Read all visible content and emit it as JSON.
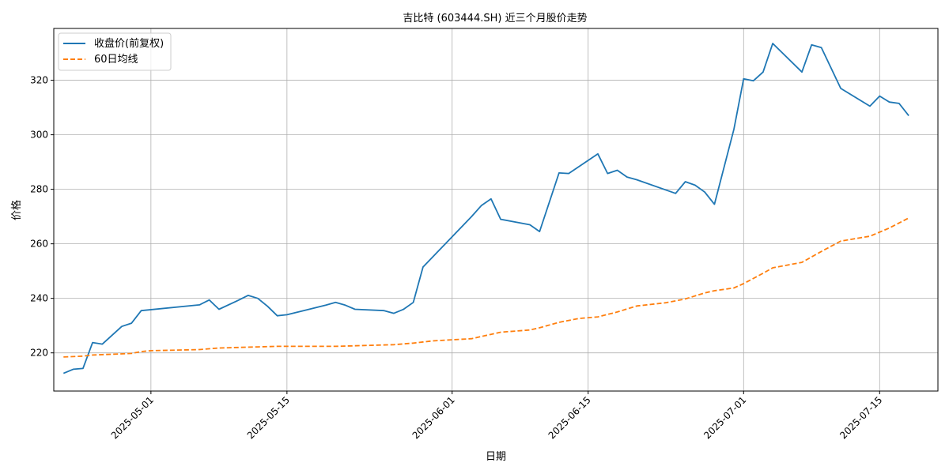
{
  "chart_data": {
    "type": "line",
    "title": "吉比特 (603444.SH) 近三个月股价走势",
    "xlabel": "日期",
    "ylabel": "价格",
    "grid": true,
    "legend_position": "top-left",
    "xlim": [
      "2025-04-21",
      "2025-07-21"
    ],
    "ylim": [
      206,
      339
    ],
    "x_ticks": [
      "2025-05-01",
      "2025-05-15",
      "2025-06-01",
      "2025-06-15",
      "2025-07-01",
      "2025-07-15"
    ],
    "y_ticks": [
      220,
      240,
      260,
      280,
      300,
      320
    ],
    "series": [
      {
        "name": "收盘价(前复权)",
        "color": "#1f77b4",
        "style": "solid",
        "points": [
          [
            "2025-04-22",
            212.5
          ],
          [
            "2025-04-23",
            214.0
          ],
          [
            "2025-04-24",
            214.3
          ],
          [
            "2025-04-25",
            223.8
          ],
          [
            "2025-04-26",
            223.2
          ],
          [
            "2025-04-28",
            229.7
          ],
          [
            "2025-04-29",
            230.9
          ],
          [
            "2025-04-30",
            235.5
          ],
          [
            "2025-05-06",
            237.6
          ],
          [
            "2025-05-07",
            239.4
          ],
          [
            "2025-05-08",
            236.0
          ],
          [
            "2025-05-10",
            239.3
          ],
          [
            "2025-05-11",
            241.1
          ],
          [
            "2025-05-12",
            240.0
          ],
          [
            "2025-05-13",
            237.1
          ],
          [
            "2025-05-14",
            233.6
          ],
          [
            "2025-05-15",
            234.0
          ],
          [
            "2025-05-19",
            237.5
          ],
          [
            "2025-05-20",
            238.5
          ],
          [
            "2025-05-21",
            237.5
          ],
          [
            "2025-05-22",
            236.0
          ],
          [
            "2025-05-25",
            235.5
          ],
          [
            "2025-05-26",
            234.5
          ],
          [
            "2025-05-27",
            236.0
          ],
          [
            "2025-05-28",
            238.5
          ],
          [
            "2025-05-29",
            251.5
          ],
          [
            "2025-06-03",
            270.0
          ],
          [
            "2025-06-04",
            274.0
          ],
          [
            "2025-06-05",
            276.5
          ],
          [
            "2025-06-06",
            269.0
          ],
          [
            "2025-06-09",
            267.0
          ],
          [
            "2025-06-10",
            264.5
          ],
          [
            "2025-06-12",
            286.0
          ],
          [
            "2025-06-13",
            285.8
          ],
          [
            "2025-06-16",
            293.0
          ],
          [
            "2025-06-17",
            285.8
          ],
          [
            "2025-06-18",
            287.0
          ],
          [
            "2025-06-19",
            284.5
          ],
          [
            "2025-06-20",
            283.5
          ],
          [
            "2025-06-24",
            278.5
          ],
          [
            "2025-06-25",
            282.8
          ],
          [
            "2025-06-26",
            281.5
          ],
          [
            "2025-06-27",
            279.0
          ],
          [
            "2025-06-28",
            274.5
          ],
          [
            "2025-06-30",
            302.0
          ],
          [
            "2025-07-01",
            320.5
          ],
          [
            "2025-07-02",
            319.8
          ],
          [
            "2025-07-03",
            323.0
          ],
          [
            "2025-07-04",
            333.5
          ],
          [
            "2025-07-07",
            323.0
          ],
          [
            "2025-07-08",
            333.0
          ],
          [
            "2025-07-09",
            332.0
          ],
          [
            "2025-07-11",
            317.0
          ],
          [
            "2025-07-14",
            310.5
          ],
          [
            "2025-07-15",
            314.2
          ],
          [
            "2025-07-16",
            312.0
          ],
          [
            "2025-07-17",
            311.5
          ],
          [
            "2025-07-18",
            307.0
          ]
        ]
      },
      {
        "name": "60日均线",
        "color": "#ff7f0e",
        "style": "dashed",
        "points": [
          [
            "2025-04-22",
            218.5
          ],
          [
            "2025-04-24",
            218.8
          ],
          [
            "2025-04-25",
            219.2
          ],
          [
            "2025-04-27",
            219.5
          ],
          [
            "2025-04-29",
            219.8
          ],
          [
            "2025-04-30",
            220.5
          ],
          [
            "2025-05-01",
            220.8
          ],
          [
            "2025-05-06",
            221.2
          ],
          [
            "2025-05-08",
            221.8
          ],
          [
            "2025-05-12",
            222.2
          ],
          [
            "2025-05-14",
            222.4
          ],
          [
            "2025-05-20",
            222.4
          ],
          [
            "2025-05-26",
            223.0
          ],
          [
            "2025-05-28",
            223.6
          ],
          [
            "2025-05-30",
            224.4
          ],
          [
            "2025-06-01",
            224.8
          ],
          [
            "2025-06-03",
            225.2
          ],
          [
            "2025-06-05",
            226.8
          ],
          [
            "2025-06-06",
            227.6
          ],
          [
            "2025-06-09",
            228.4
          ],
          [
            "2025-06-10",
            229.2
          ],
          [
            "2025-06-12",
            231.2
          ],
          [
            "2025-06-14",
            232.6
          ],
          [
            "2025-06-16",
            233.2
          ],
          [
            "2025-06-18",
            235.0
          ],
          [
            "2025-06-20",
            237.2
          ],
          [
            "2025-06-23",
            238.4
          ],
          [
            "2025-06-25",
            239.8
          ],
          [
            "2025-06-27",
            242.0
          ],
          [
            "2025-06-28",
            242.8
          ],
          [
            "2025-06-30",
            243.8
          ],
          [
            "2025-07-01",
            245.4
          ],
          [
            "2025-07-03",
            249.2
          ],
          [
            "2025-07-04",
            251.2
          ],
          [
            "2025-07-07",
            253.2
          ],
          [
            "2025-07-09",
            257.2
          ],
          [
            "2025-07-11",
            261.0
          ],
          [
            "2025-07-14",
            262.8
          ],
          [
            "2025-07-16",
            265.8
          ],
          [
            "2025-07-18",
            269.5
          ]
        ]
      }
    ]
  }
}
